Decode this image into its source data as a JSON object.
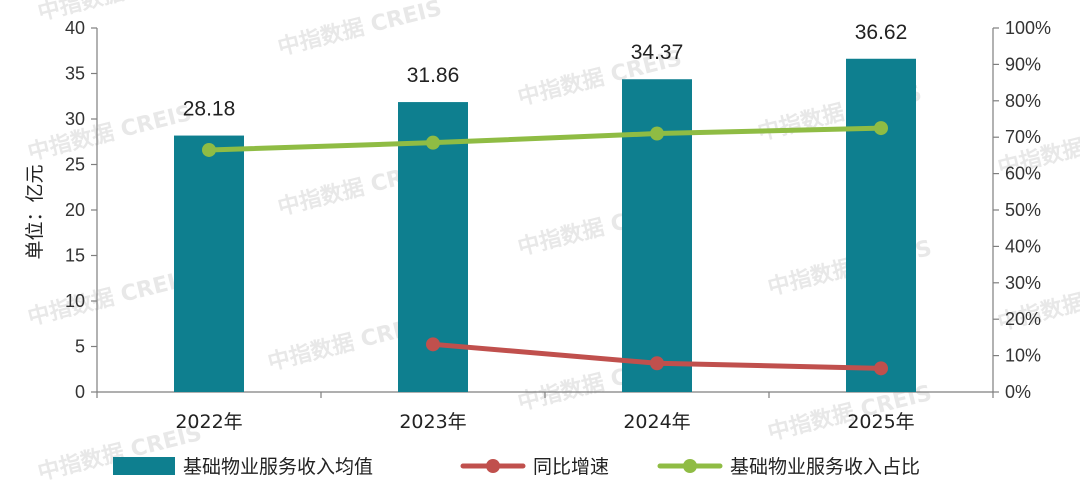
{
  "watermark": "中指数据 CREIS",
  "chart_data": {
    "type": "bar",
    "categories": [
      "2022年",
      "2023年",
      "2024年",
      "2025年"
    ],
    "ylabel": "单位：亿元",
    "ylim": [
      0,
      40
    ],
    "y_ticks": [
      "0",
      "5",
      "10",
      "15",
      "20",
      "25",
      "30",
      "35",
      "40"
    ],
    "y2lim": [
      0,
      100
    ],
    "y2_ticks": [
      "0%",
      "10%",
      "20%",
      "30%",
      "40%",
      "50%",
      "60%",
      "70%",
      "80%",
      "90%",
      "100%"
    ],
    "legend_position": "bottom",
    "grid": false,
    "series": [
      {
        "name": "基础物业服务收入均值",
        "type": "bar",
        "axis": "left",
        "color": "#0e7f8f",
        "values": [
          28.18,
          31.86,
          34.37,
          36.62
        ],
        "labels": [
          "28.18",
          "31.86",
          "34.37",
          "36.62"
        ]
      },
      {
        "name": "同比增速",
        "type": "line",
        "axis": "right",
        "color": "#c0504d",
        "values": [
          null,
          13.1,
          7.9,
          6.5
        ]
      },
      {
        "name": "基础物业服务收入占比",
        "type": "line",
        "axis": "right",
        "color": "#8fbc44",
        "values": [
          66.5,
          68.5,
          71.0,
          72.5
        ]
      }
    ]
  }
}
